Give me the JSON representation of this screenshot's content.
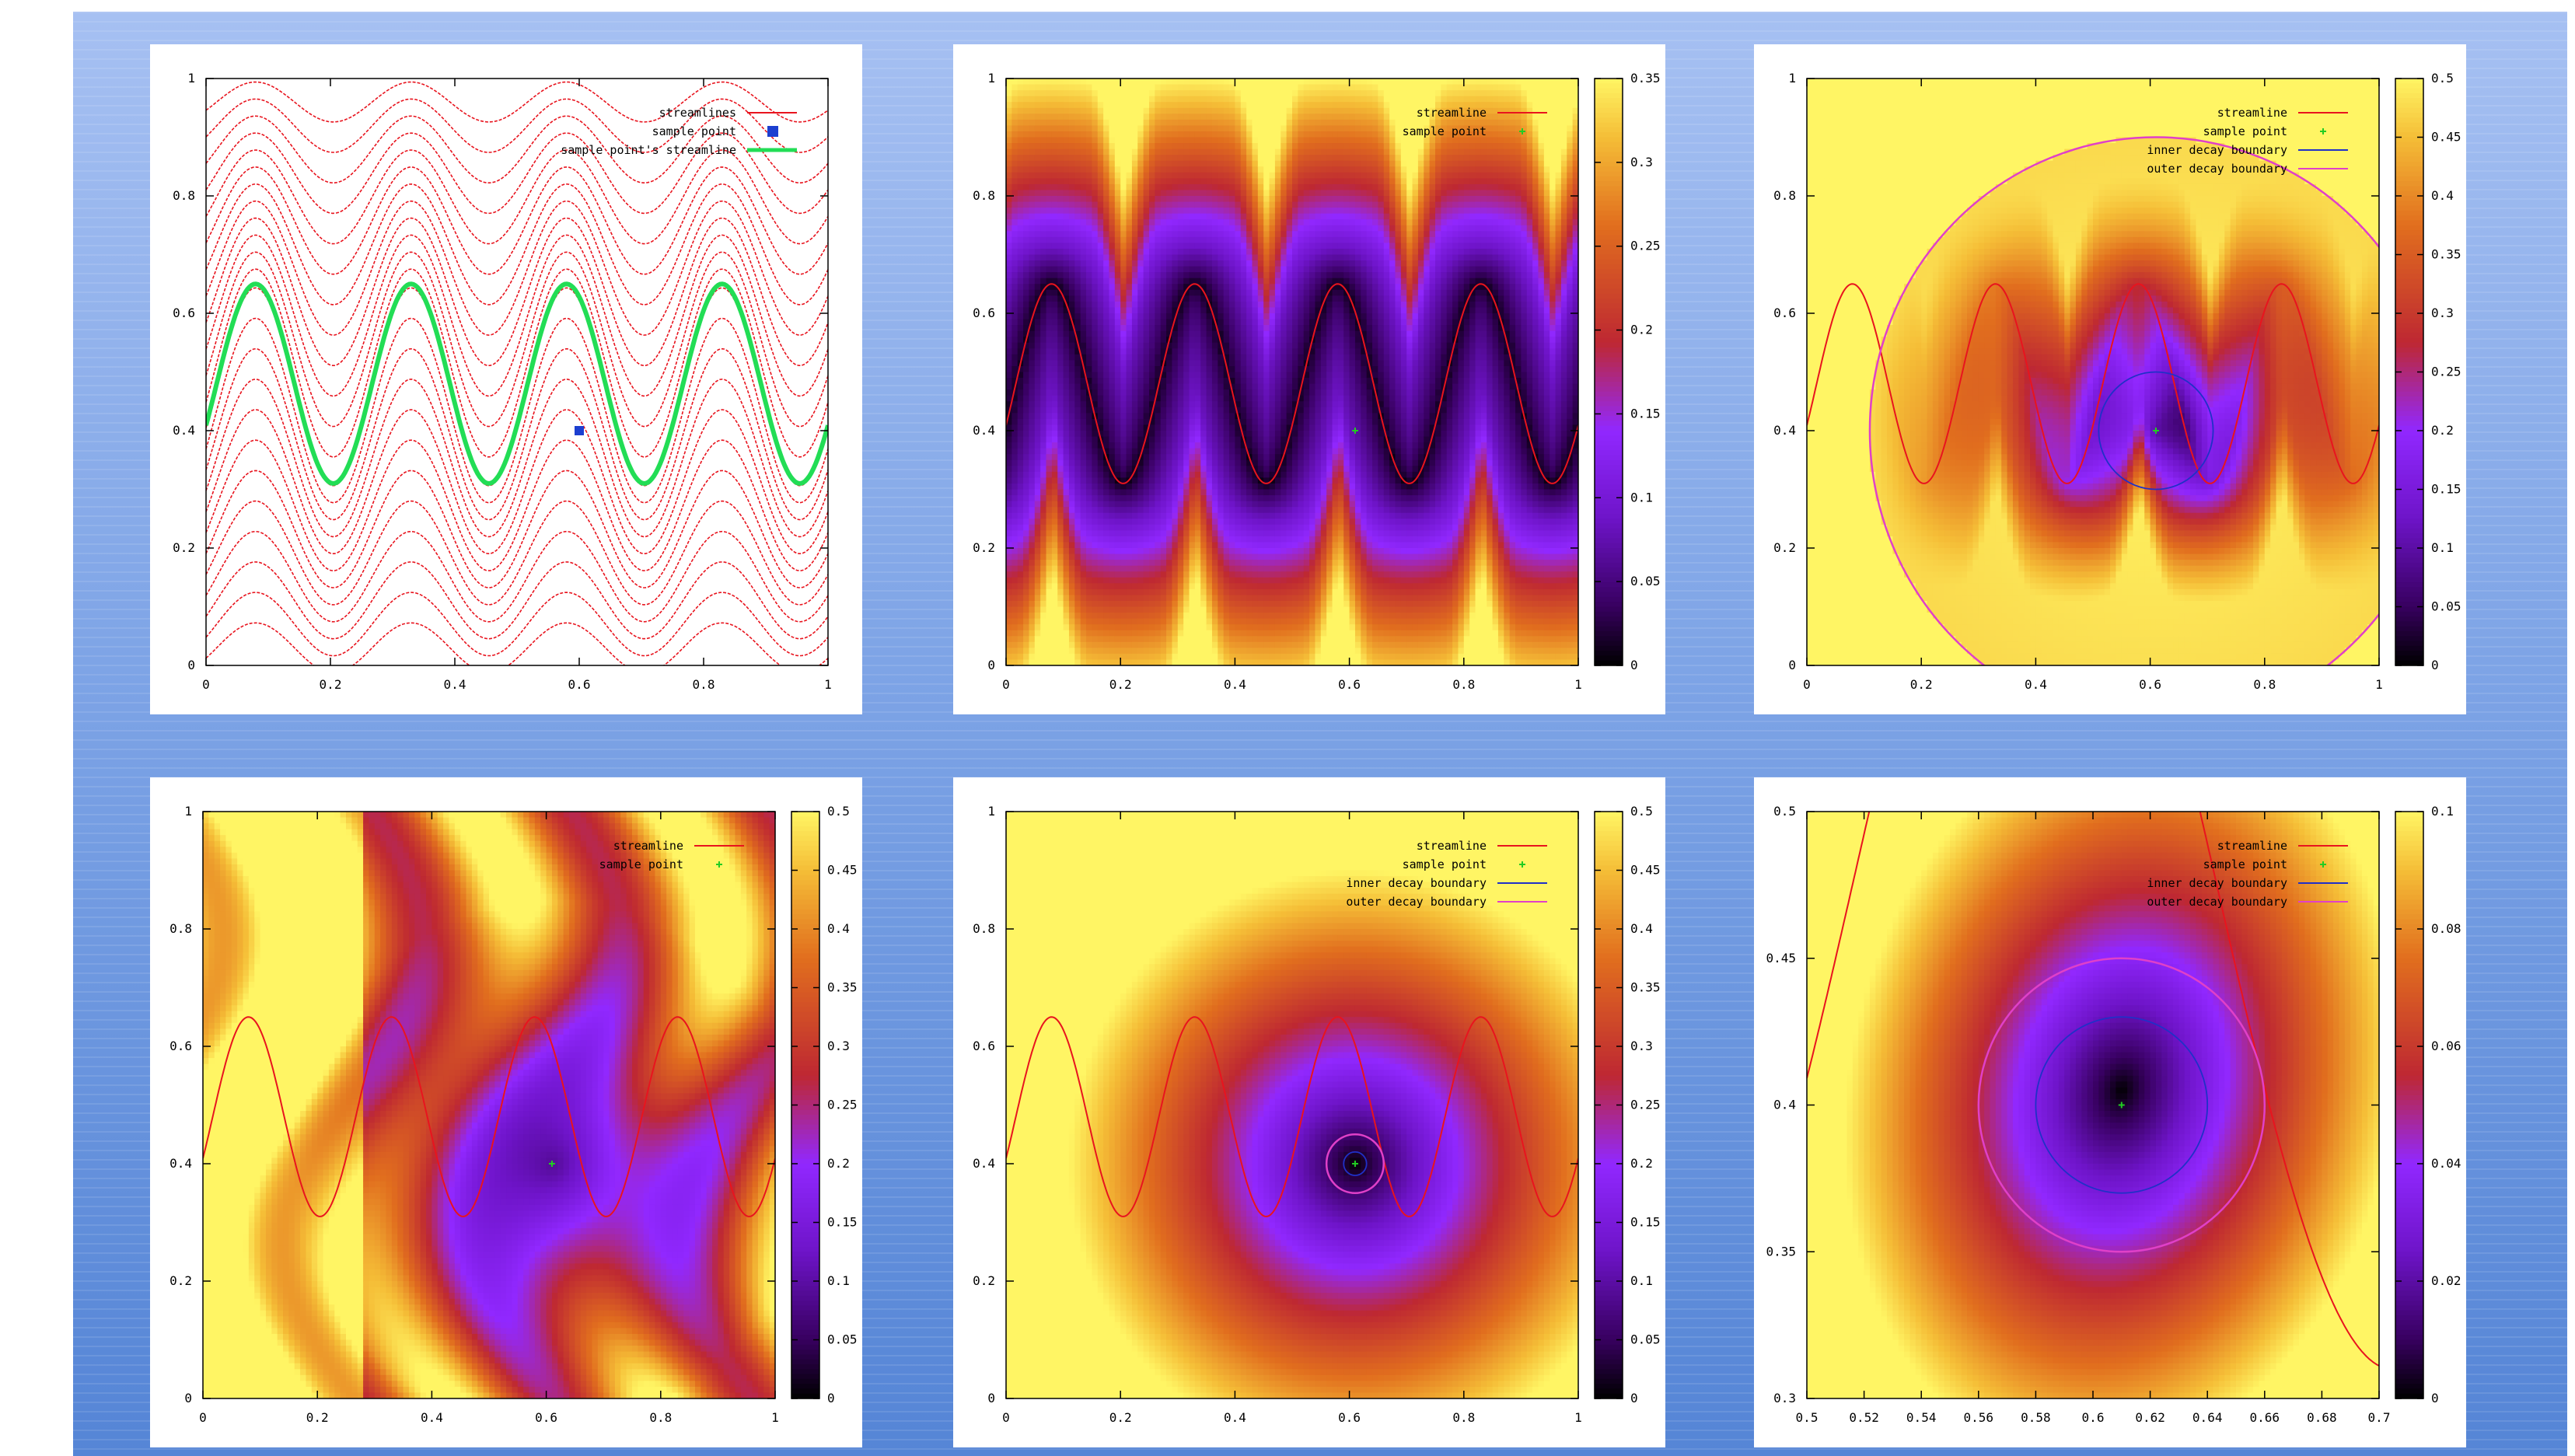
{
  "background": {
    "colors": [
      "#a6c0f2",
      "#5585d6"
    ]
  },
  "colors": {
    "streamline": "#e8141e",
    "sample_point": "#22cc22",
    "sample_marker": "#1c3fd0",
    "sample_streamline": "#22dd55",
    "inner_boundary": "#2030c8",
    "outer_boundary": "#e040c8"
  },
  "chart_data": [
    {
      "id": "p1",
      "type": "line",
      "xlim": [
        0,
        1
      ],
      "ylim": [
        0,
        1
      ],
      "xticks": [
        "0",
        "0.2",
        "0.4",
        "0.6",
        "0.8",
        "1"
      ],
      "yticks": [
        "0",
        "0.2",
        "0.4",
        "0.6",
        "0.8",
        "1"
      ],
      "legend_position": "top-right",
      "legend": [
        {
          "label": "streamlines",
          "style": "line",
          "color": "#e8141e"
        },
        {
          "label": "sample point",
          "style": "square",
          "color": "#1c3fd0"
        },
        {
          "label": "sample point's streamline",
          "style": "line",
          "color": "#22dd55"
        }
      ],
      "sample_point": [
        0.6,
        0.4
      ],
      "streamlines": {
        "count": 24,
        "wavelength": 0.25,
        "amplitude_at_sample": 0.17
      },
      "sample_streamline": {
        "center": 0.48,
        "amplitude": 0.17
      }
    },
    {
      "id": "p2",
      "type": "heatmap",
      "xlim": [
        0,
        1
      ],
      "ylim": [
        0,
        1
      ],
      "xticks": [
        "0",
        "0.2",
        "0.4",
        "0.6",
        "0.8",
        "1"
      ],
      "yticks": [
        "0",
        "0.2",
        "0.4",
        "0.6",
        "0.8",
        "1"
      ],
      "colorbar_range": [
        0,
        0.35
      ],
      "colorbar_ticks": [
        "0",
        "0.05",
        "0.1",
        "0.15",
        "0.2",
        "0.25",
        "0.3",
        "0.35"
      ],
      "legend_position": "top-right",
      "legend": [
        {
          "label": "streamline",
          "style": "line",
          "color": "#e8141e"
        },
        {
          "label": "sample point",
          "style": "dot",
          "color": "#22cc22"
        }
      ],
      "sample_point": [
        0.61,
        0.4
      ]
    },
    {
      "id": "p3",
      "type": "heatmap",
      "xlim": [
        0,
        1
      ],
      "ylim": [
        0,
        1
      ],
      "xticks": [
        "0",
        "0.2",
        "0.4",
        "0.6",
        "0.8",
        "1"
      ],
      "yticks": [
        "0",
        "0.2",
        "0.4",
        "0.6",
        "0.8",
        "1"
      ],
      "colorbar_range": [
        0,
        0.5
      ],
      "colorbar_ticks": [
        "0",
        "0.05",
        "0.1",
        "0.15",
        "0.2",
        "0.25",
        "0.3",
        "0.35",
        "0.4",
        "0.45",
        "0.5"
      ],
      "legend_position": "top-right",
      "legend": [
        {
          "label": "streamline",
          "style": "line",
          "color": "#e8141e"
        },
        {
          "label": "sample point",
          "style": "dot",
          "color": "#22cc22"
        },
        {
          "label": "inner decay boundary",
          "style": "line",
          "color": "#2030c8"
        },
        {
          "label": "outer decay boundary",
          "style": "line",
          "color": "#e040c8"
        }
      ],
      "sample_point": [
        0.61,
        0.4
      ],
      "inner_radius": 0.1,
      "outer_radius": 0.5
    },
    {
      "id": "p4",
      "type": "heatmap",
      "xlim": [
        0,
        1
      ],
      "ylim": [
        0,
        1
      ],
      "xticks": [
        "0",
        "0.2",
        "0.4",
        "0.6",
        "0.8",
        "1"
      ],
      "yticks": [
        "0",
        "0.2",
        "0.4",
        "0.6",
        "0.8",
        "1"
      ],
      "colorbar_range": [
        0,
        0.5
      ],
      "colorbar_ticks": [
        "0",
        "0.05",
        "0.1",
        "0.15",
        "0.2",
        "0.25",
        "0.3",
        "0.35",
        "0.4",
        "0.45",
        "0.5"
      ],
      "legend_position": "top-right",
      "legend": [
        {
          "label": "streamline",
          "style": "line",
          "color": "#e8141e"
        },
        {
          "label": "sample point",
          "style": "dot",
          "color": "#22cc22"
        }
      ],
      "sample_point": [
        0.61,
        0.4
      ]
    },
    {
      "id": "p5",
      "type": "heatmap",
      "xlim": [
        0,
        1
      ],
      "ylim": [
        0,
        1
      ],
      "xticks": [
        "0",
        "0.2",
        "0.4",
        "0.6",
        "0.8",
        "1"
      ],
      "yticks": [
        "0",
        "0.2",
        "0.4",
        "0.6",
        "0.8",
        "1"
      ],
      "colorbar_range": [
        0,
        0.5
      ],
      "colorbar_ticks": [
        "0",
        "0.05",
        "0.1",
        "0.15",
        "0.2",
        "0.25",
        "0.3",
        "0.35",
        "0.4",
        "0.45",
        "0.5"
      ],
      "legend_position": "top-right",
      "legend": [
        {
          "label": "streamline",
          "style": "line",
          "color": "#e8141e"
        },
        {
          "label": "sample point",
          "style": "dot",
          "color": "#22cc22"
        },
        {
          "label": "inner decay boundary",
          "style": "line",
          "color": "#2030c8"
        },
        {
          "label": "outer decay boundary",
          "style": "line",
          "color": "#e040c8"
        }
      ],
      "sample_point": [
        0.61,
        0.4
      ],
      "inner_radius": 0.02,
      "outer_radius": 0.05
    },
    {
      "id": "p6",
      "type": "heatmap",
      "xlim": [
        0.5,
        0.7
      ],
      "ylim": [
        0.3,
        0.5
      ],
      "xticks": [
        "0.5",
        "0.52",
        "0.54",
        "0.56",
        "0.58",
        "0.6",
        "0.62",
        "0.64",
        "0.66",
        "0.68",
        "0.7"
      ],
      "yticks": [
        "0.3",
        "0.35",
        "0.4",
        "0.45",
        "0.5"
      ],
      "colorbar_range": [
        0,
        0.1
      ],
      "colorbar_ticks": [
        "0",
        "0.02",
        "0.04",
        "0.06",
        "0.08",
        "0.1"
      ],
      "legend_position": "top-right",
      "legend": [
        {
          "label": "streamline",
          "style": "line",
          "color": "#e8141e"
        },
        {
          "label": "sample point",
          "style": "dot",
          "color": "#22cc22"
        },
        {
          "label": "inner decay boundary",
          "style": "line",
          "color": "#2030c8"
        },
        {
          "label": "outer decay boundary",
          "style": "line",
          "color": "#e040c8"
        }
      ],
      "sample_point": [
        0.61,
        0.4
      ],
      "inner_radius": 0.03,
      "outer_radius": 0.05
    }
  ]
}
